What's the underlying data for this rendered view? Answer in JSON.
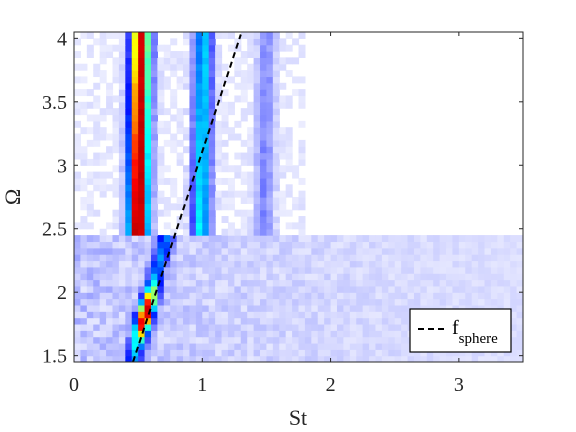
{
  "chart_data": {
    "type": "heatmap",
    "xlabel": "St",
    "ylabel": "Ω",
    "xlim": [
      0,
      3.5
    ],
    "ylim": [
      1.45,
      4.05
    ],
    "x_ticks": [
      "0",
      "1",
      "2",
      "3"
    ],
    "y_ticks": [
      "1.5",
      "2",
      "2.5",
      "3",
      "3.5",
      "4"
    ],
    "colormap": [
      "#ffffff",
      "#0010ff",
      "#00ffff",
      "#ffff00",
      "#ff0000",
      "#800000"
    ],
    "regime_boundary_omega": 2.47,
    "upper_regime": {
      "omega_range": [
        2.47,
        4.05
      ],
      "peaks": [
        {
          "st_at_omega_2_5": 0.5,
          "st_at_omega_4": 0.52,
          "width": 0.05,
          "amplitude_at_omega_2_5": 0.98,
          "amplitude_at_omega_4": 0.85
        },
        {
          "st_at_omega_2_5": 0.99,
          "st_at_omega_4": 1.01,
          "width": 0.045,
          "amplitude_at_omega_2_5": 0.4,
          "amplitude_at_omega_4": 0.36
        },
        {
          "st_at_omega_2_5": 1.48,
          "st_at_omega_4": 1.5,
          "width": 0.05,
          "amplitude_at_omega_2_5": 0.09,
          "amplitude_at_omega_4": 0.08
        }
      ]
    },
    "lower_regime": {
      "omega_range": [
        1.45,
        2.47
      ],
      "peaks": [
        {
          "st_at_omega_1_5": 0.47,
          "st_at_omega_2_45": 0.72,
          "width": 0.04,
          "amplitude_max": 0.88,
          "amplitude_max_omega": 1.83
        }
      ]
    },
    "series": [
      {
        "name": "f_sphere",
        "style": "dashed",
        "color": "#000000",
        "x": [
          0.46,
          1.3
        ],
        "y": [
          1.45,
          4.03
        ]
      }
    ],
    "legend": {
      "placement": "bottom-right",
      "entries": [
        {
          "label_main": "f",
          "label_sub": "sphere"
        }
      ]
    }
  }
}
